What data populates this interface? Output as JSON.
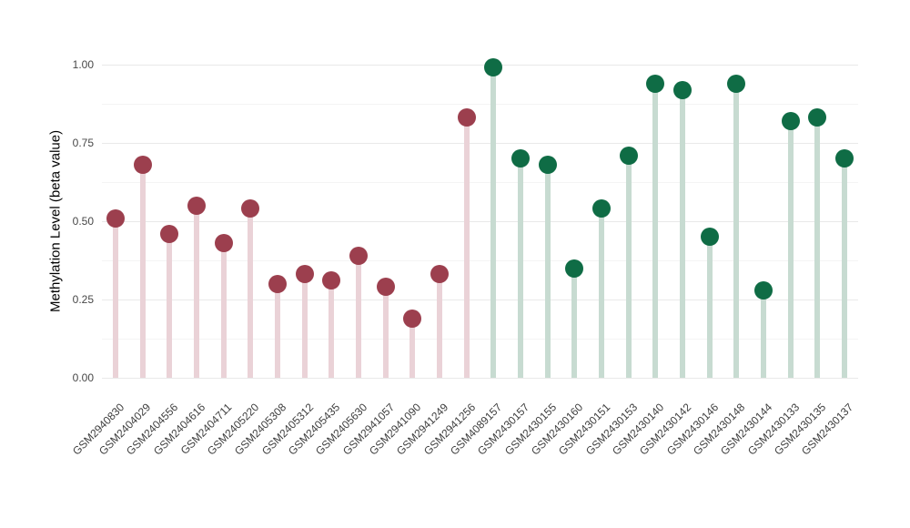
{
  "figure": {
    "title": "",
    "background": "#ffffff"
  },
  "chart_data": {
    "type": "scatter",
    "style": "lollipop",
    "title": "",
    "xlabel": "",
    "ylabel": "Methylation Level (beta value)",
    "ylim": [
      -0.05,
      1.05
    ],
    "grid": "horizontal only, major + minor, no vertical gridlines, no axis lines",
    "legend": "none",
    "y_ticks": [
      {
        "value": 0.0,
        "label": "0.00"
      },
      {
        "value": 0.25,
        "label": "0.25"
      },
      {
        "value": 0.5,
        "label": "0.50"
      },
      {
        "value": 0.75,
        "label": "0.75"
      },
      {
        "value": 1.0,
        "label": "1.00"
      }
    ],
    "y_minor_ticks": [
      0.125,
      0.375,
      0.625,
      0.875
    ],
    "colors": {
      "group1_dot": "#9c3f4e",
      "group1_stem": "#ead2d7",
      "group2_dot": "#0f6c45",
      "group2_stem": "#c7dbd1",
      "grid_major": "#e9e9e9",
      "grid_minor": "#f4f4f4"
    },
    "points": [
      {
        "sample": "GSM2940830",
        "value": 0.51,
        "group": "group1"
      },
      {
        "sample": "GSM2404029",
        "value": 0.68,
        "group": "group1"
      },
      {
        "sample": "GSM2404556",
        "value": 0.46,
        "group": "group1"
      },
      {
        "sample": "GSM2404616",
        "value": 0.55,
        "group": "group1"
      },
      {
        "sample": "GSM2404711",
        "value": 0.43,
        "group": "group1"
      },
      {
        "sample": "GSM2405220",
        "value": 0.54,
        "group": "group1"
      },
      {
        "sample": "GSM2405308",
        "value": 0.3,
        "group": "group1"
      },
      {
        "sample": "GSM2405312",
        "value": 0.33,
        "group": "group1"
      },
      {
        "sample": "GSM2405435",
        "value": 0.31,
        "group": "group1"
      },
      {
        "sample": "GSM2405630",
        "value": 0.39,
        "group": "group1"
      },
      {
        "sample": "GSM2941057",
        "value": 0.29,
        "group": "group1"
      },
      {
        "sample": "GSM2941090",
        "value": 0.19,
        "group": "group1"
      },
      {
        "sample": "GSM2941249",
        "value": 0.33,
        "group": "group1"
      },
      {
        "sample": "GSM2941256",
        "value": 0.83,
        "group": "group1"
      },
      {
        "sample": "GSM4089157",
        "value": 0.99,
        "group": "group2"
      },
      {
        "sample": "GSM2430157",
        "value": 0.7,
        "group": "group2"
      },
      {
        "sample": "GSM2430155",
        "value": 0.68,
        "group": "group2"
      },
      {
        "sample": "GSM2430160",
        "value": 0.35,
        "group": "group2"
      },
      {
        "sample": "GSM2430151",
        "value": 0.54,
        "group": "group2"
      },
      {
        "sample": "GSM2430153",
        "value": 0.71,
        "group": "group2"
      },
      {
        "sample": "GSM2430140",
        "value": 0.94,
        "group": "group2"
      },
      {
        "sample": "GSM2430142",
        "value": 0.92,
        "group": "group2"
      },
      {
        "sample": "GSM2430146",
        "value": 0.45,
        "group": "group2"
      },
      {
        "sample": "GSM2430148",
        "value": 0.94,
        "group": "group2"
      },
      {
        "sample": "GSM2430144",
        "value": 0.28,
        "group": "group2"
      },
      {
        "sample": "GSM2430133",
        "value": 0.82,
        "group": "group2"
      },
      {
        "sample": "GSM2430135",
        "value": 0.83,
        "group": "group2"
      },
      {
        "sample": "GSM2430137",
        "value": 0.7,
        "group": "group2"
      }
    ]
  }
}
